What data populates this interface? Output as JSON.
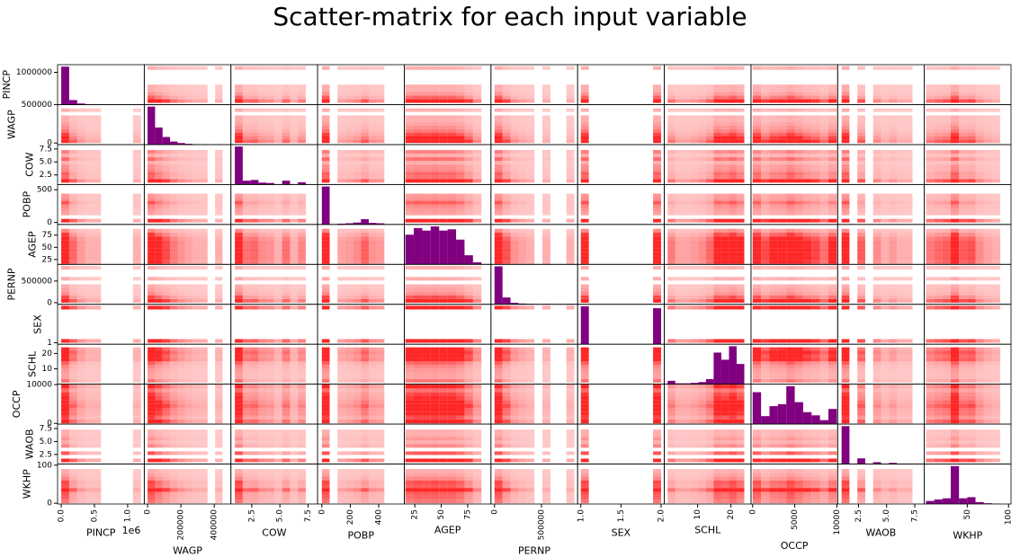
{
  "chart_data": {
    "type": "scatter-matrix",
    "title": "Scatter-matrix for each input variable",
    "point_color": "red",
    "hist_color": "purple",
    "variables": [
      {
        "name": "PINCP",
        "lim": [
          -55000,
          1250000
        ],
        "xticks": [
          {
            "value": 0,
            "label": "0.0"
          },
          {
            "value": 500000,
            "label": "0.5"
          },
          {
            "value": 1000000,
            "label": "1.0"
          }
        ],
        "yticks": [
          1000000
        ],
        "offset_label": "1e6",
        "bins": [
          0,
          120000,
          240000,
          360000,
          480000,
          600000,
          720000,
          840000,
          960000,
          1080000,
          1200000
        ],
        "counts": [
          100,
          12,
          3,
          1,
          1,
          0,
          0,
          0,
          0,
          1
        ]
      },
      {
        "name": "WAGP",
        "lim": [
          -20000,
          500000
        ],
        "xticks": [
          0,
          200000,
          400000
        ],
        "yticks": [
          0,
          500000
        ],
        "bins": [
          0,
          45000,
          90000,
          135000,
          180000,
          225000,
          270000,
          315000,
          360000,
          405000,
          450000
        ],
        "counts": [
          100,
          45,
          20,
          8,
          4,
          2,
          1,
          1,
          0,
          1
        ]
      },
      {
        "name": "COW",
        "lim": [
          0.65,
          8.35
        ],
        "xticks": [
          2.5,
          {
            "value": 5,
            "label": "5.0"
          },
          7.5
        ],
        "yticks": [
          2.5,
          {
            "value": 5,
            "label": "5.0"
          },
          7.5
        ],
        "bins": [
          1,
          1.7,
          2.4,
          3.1,
          3.8,
          4.5,
          5.2,
          5.9,
          6.6,
          7.3,
          8
        ],
        "counts": [
          100,
          10,
          12,
          5,
          4,
          1,
          10,
          1,
          6,
          0
        ]
      },
      {
        "name": "POBP",
        "lim": [
          -30,
          580
        ],
        "xticks": [
          0,
          200,
          400
        ],
        "yticks": [
          0,
          500
        ],
        "bins": [
          0,
          55,
          110,
          165,
          220,
          275,
          330,
          385,
          440,
          495,
          550
        ],
        "counts": [
          100,
          0,
          2,
          3,
          5,
          14,
          4,
          3,
          0,
          0
        ]
      },
      {
        "name": "AGEP",
        "lim": [
          15,
          97
        ],
        "xticks": [
          25,
          50,
          75
        ],
        "yticks": [
          25,
          50,
          75
        ],
        "bins": [
          16,
          24,
          32,
          40,
          48,
          56,
          64,
          72,
          80,
          88,
          96
        ],
        "counts": [
          72,
          88,
          82,
          92,
          82,
          85,
          60,
          22,
          5,
          0
        ]
      },
      {
        "name": "PERNP",
        "lim": [
          -38000,
          885000
        ],
        "xticks": [
          0,
          500000
        ],
        "yticks": [
          0,
          500000
        ],
        "bins": [
          0,
          85000,
          170000,
          255000,
          340000,
          425000,
          510000,
          595000,
          680000,
          765000,
          850000
        ],
        "counts": [
          100,
          18,
          4,
          2,
          1,
          0,
          1,
          0,
          0,
          1
        ]
      },
      {
        "name": "SEX",
        "lim": [
          0.96,
          2.04
        ],
        "xticks": [
          {
            "value": 1,
            "label": "1.0"
          },
          1.5,
          {
            "value": 2,
            "label": "2.0"
          }
        ],
        "yticks": [
          1
        ],
        "bins": [
          1,
          1.1,
          1.2,
          1.3,
          1.4,
          1.5,
          1.6,
          1.7,
          1.8,
          1.9,
          2
        ],
        "counts": [
          100,
          0,
          0,
          0,
          0,
          0,
          0,
          0,
          0,
          95
        ]
      },
      {
        "name": "SCHL",
        "lim": [
          0,
          26
        ],
        "xticks": [
          10,
          20
        ],
        "yticks": [
          10,
          20
        ],
        "bins": [
          1,
          3.3,
          5.6,
          7.9,
          10.2,
          12.5,
          14.8,
          17.1,
          19.4,
          21.7,
          24
        ],
        "counts": [
          8,
          2,
          2,
          3,
          5,
          12,
          75,
          58,
          90,
          48
        ]
      },
      {
        "name": "OCCP",
        "lim": [
          -200,
          10100
        ],
        "xticks": [
          0,
          5000,
          10000
        ],
        "yticks": [
          0,
          10000
        ],
        "bins": [
          0,
          1000,
          2000,
          3000,
          4000,
          5000,
          6000,
          7000,
          8000,
          9000,
          10000
        ],
        "counts": [
          80,
          20,
          45,
          50,
          95,
          55,
          30,
          22,
          10,
          38
        ]
      },
      {
        "name": "WAOB",
        "lim": [
          0.65,
          8.35
        ],
        "xticks": [
          2.5,
          {
            "value": 5,
            "label": "5.0"
          },
          7.5
        ],
        "yticks": [
          2.5,
          {
            "value": 5,
            "label": "5.0"
          },
          7.5
        ],
        "bins": [
          1,
          1.7,
          2.4,
          3.1,
          3.8,
          4.5,
          5.2,
          5.9,
          6.6,
          7.3,
          8
        ],
        "counts": [
          100,
          0,
          15,
          0,
          5,
          1,
          3,
          1,
          1,
          0
        ]
      },
      {
        "name": "WKHP",
        "lim": [
          -2,
          103
        ],
        "xticks": [
          50,
          100
        ],
        "yticks": [
          0,
          100
        ],
        "bins": [
          0,
          10,
          20,
          30,
          40,
          50,
          60,
          70,
          80,
          90,
          100
        ],
        "counts": [
          8,
          12,
          15,
          100,
          15,
          18,
          5,
          2,
          1,
          0
        ]
      }
    ]
  }
}
